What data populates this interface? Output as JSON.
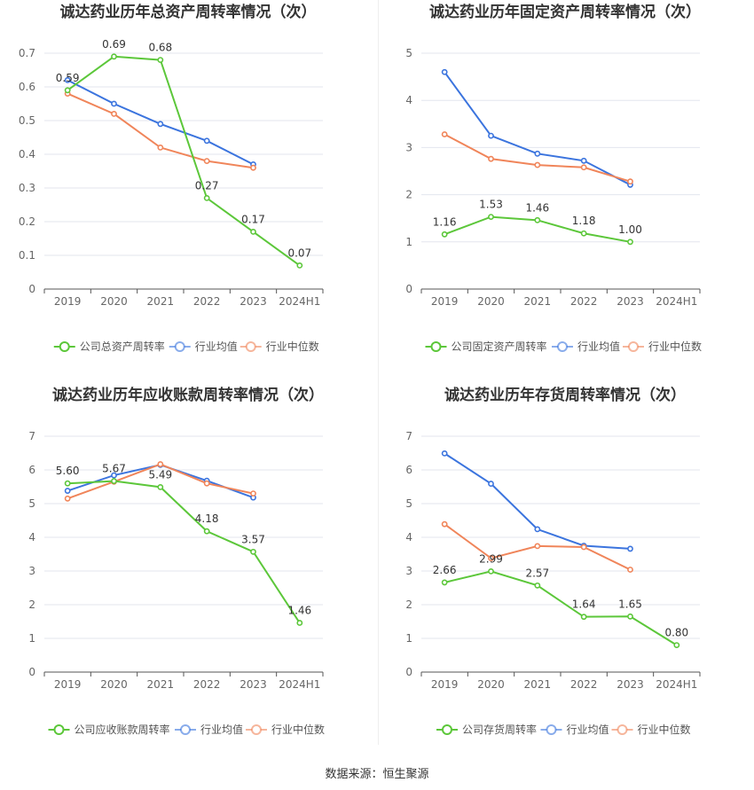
{
  "source_text": "数据来源：恒生聚源",
  "colors": {
    "company": "#5cc73a",
    "avg": "#3b74de",
    "median": "#f0855a",
    "grid": "#e3e6ee",
    "axis": "#555555"
  },
  "chart_data": [
    {
      "type": "line",
      "title": "诚达药业历年总资产周转率情况（次）",
      "categories": [
        "2019",
        "2020",
        "2021",
        "2022",
        "2023",
        "2024H1"
      ],
      "ylim": [
        0,
        0.7
      ],
      "yticks": [
        "0",
        "0.1",
        "0.2",
        "0.3",
        "0.4",
        "0.5",
        "0.6",
        "0.7"
      ],
      "series": [
        {
          "name": "公司总资产周转率",
          "role": "company",
          "values": [
            0.59,
            0.69,
            0.68,
            0.27,
            0.17,
            0.07
          ],
          "labels": [
            "0.59",
            "0.69",
            "0.68",
            "0.27",
            "0.17",
            "0.07"
          ]
        },
        {
          "name": "行业均值",
          "role": "avg",
          "values": [
            0.62,
            0.55,
            0.49,
            0.44,
            0.37,
            null
          ]
        },
        {
          "name": "行业中位数",
          "role": "median",
          "values": [
            0.58,
            0.52,
            0.42,
            0.38,
            0.36,
            null
          ]
        }
      ],
      "legend": "bottom",
      "grid": true
    },
    {
      "type": "line",
      "title": "诚达药业历年固定资产周转率情况（次）",
      "categories": [
        "2019",
        "2020",
        "2021",
        "2022",
        "2023",
        "2024H1"
      ],
      "ylim": [
        0,
        5
      ],
      "yticks": [
        "0",
        "1",
        "2",
        "3",
        "4",
        "5"
      ],
      "series": [
        {
          "name": "公司固定资产周转率",
          "role": "company",
          "values": [
            1.16,
            1.53,
            1.46,
            1.18,
            1.0,
            null
          ],
          "labels": [
            "1.16",
            "1.53",
            "1.46",
            "1.18",
            "1.00",
            ""
          ]
        },
        {
          "name": "行业均值",
          "role": "avg",
          "values": [
            4.6,
            3.25,
            2.87,
            2.72,
            2.21,
            null
          ]
        },
        {
          "name": "行业中位数",
          "role": "median",
          "values": [
            3.28,
            2.76,
            2.63,
            2.58,
            2.28,
            null
          ]
        }
      ],
      "legend": "bottom",
      "grid": true
    },
    {
      "type": "line",
      "title": "诚达药业历年应收账款周转率情况（次）",
      "categories": [
        "2019",
        "2020",
        "2021",
        "2022",
        "2023",
        "2024H1"
      ],
      "ylim": [
        0,
        7
      ],
      "yticks": [
        "0",
        "1",
        "2",
        "3",
        "4",
        "5",
        "6",
        "7"
      ],
      "series": [
        {
          "name": "公司应收账款周转率",
          "role": "company",
          "values": [
            5.6,
            5.67,
            5.49,
            4.18,
            3.57,
            1.46
          ],
          "labels": [
            "5.60",
            "5.67",
            "5.49",
            "4.18",
            "3.57",
            "1.46"
          ]
        },
        {
          "name": "行业均值",
          "role": "avg",
          "values": [
            5.38,
            5.84,
            6.15,
            5.68,
            5.18,
            null
          ]
        },
        {
          "name": "行业中位数",
          "role": "median",
          "values": [
            5.15,
            5.65,
            6.17,
            5.6,
            5.3,
            null
          ]
        }
      ],
      "legend": "bottom",
      "grid": true
    },
    {
      "type": "line",
      "title": "诚达药业历年存货周转率情况（次）",
      "categories": [
        "2019",
        "2020",
        "2021",
        "2022",
        "2023",
        "2024H1"
      ],
      "ylim": [
        0,
        7
      ],
      "yticks": [
        "0",
        "1",
        "2",
        "3",
        "4",
        "5",
        "6",
        "7"
      ],
      "series": [
        {
          "name": "公司存货周转率",
          "role": "company",
          "values": [
            2.66,
            2.99,
            2.57,
            1.64,
            1.65,
            0.8
          ],
          "labels": [
            "2.66",
            "2.99",
            "2.57",
            "1.64",
            "1.65",
            "0.80"
          ]
        },
        {
          "name": "行业均值",
          "role": "avg",
          "values": [
            6.49,
            5.59,
            4.24,
            3.75,
            3.66,
            null
          ]
        },
        {
          "name": "行业中位数",
          "role": "median",
          "values": [
            4.39,
            3.38,
            3.74,
            3.71,
            3.04,
            null
          ]
        }
      ],
      "legend": "bottom",
      "grid": true
    }
  ]
}
